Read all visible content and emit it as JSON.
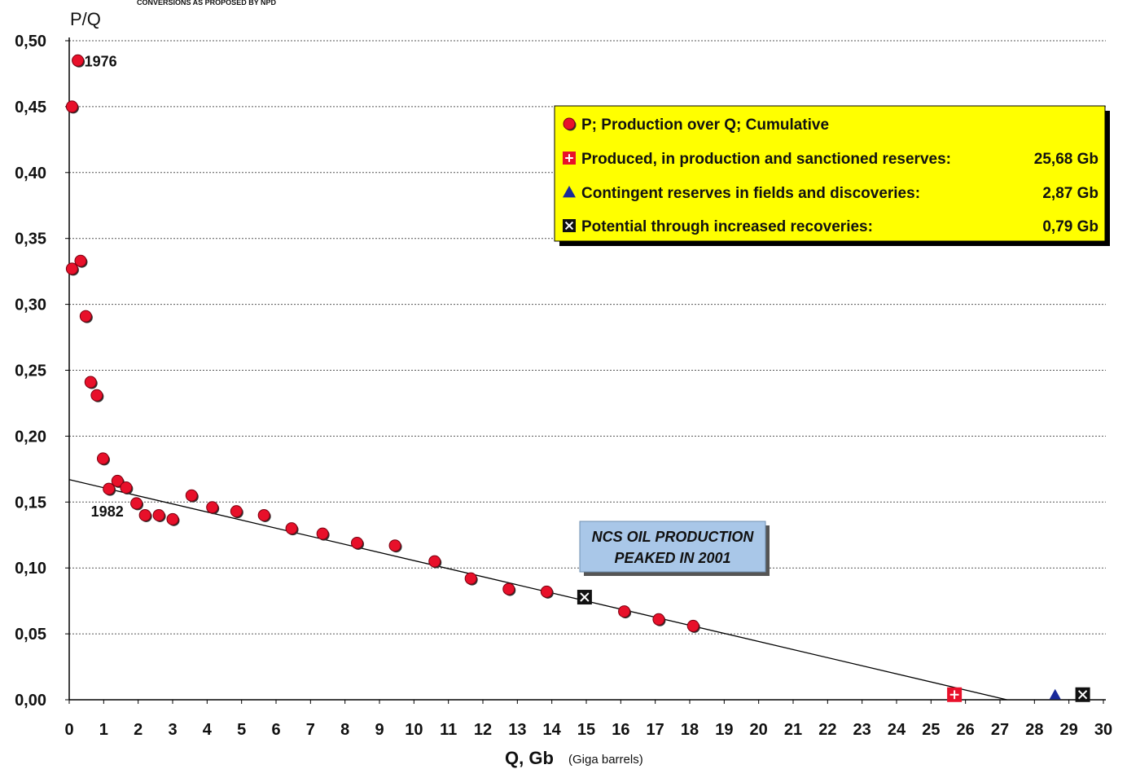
{
  "chart_data": {
    "type": "scatter",
    "header_note": "CONVERSIONS AS PROPOSED BY NPD",
    "ylabel": "P/Q",
    "xlabel": "Q, Gb",
    "xlabel_unit": "(Giga barrels)",
    "xlim": [
      0,
      30
    ],
    "ylim": [
      0,
      0.5
    ],
    "x_ticks": [
      "0",
      "1",
      "2",
      "3",
      "4",
      "5",
      "6",
      "7",
      "8",
      "9",
      "10",
      "11",
      "12",
      "13",
      "14",
      "15",
      "16",
      "17",
      "18",
      "19",
      "20",
      "21",
      "22",
      "23",
      "24",
      "25",
      "26",
      "27",
      "28",
      "29",
      "30"
    ],
    "y_ticks": [
      "0,00",
      "0,05",
      "0,10",
      "0,15",
      "0,20",
      "0,25",
      "0,30",
      "0,35",
      "0,40",
      "0,45",
      "0,50"
    ],
    "grid": "horizontal dotted",
    "legend_position": "top-right",
    "series": [
      {
        "name": "P; Production over Q; Cumulative",
        "marker": "circle",
        "color": "#e8102a",
        "points": [
          [
            0.08,
            0.45
          ],
          [
            0.25,
            0.485
          ],
          [
            0.08,
            0.327
          ],
          [
            0.33,
            0.333
          ],
          [
            0.48,
            0.291
          ],
          [
            0.62,
            0.241
          ],
          [
            0.8,
            0.231
          ],
          [
            0.98,
            0.183
          ],
          [
            1.15,
            0.16
          ],
          [
            1.4,
            0.166
          ],
          [
            1.65,
            0.161
          ],
          [
            1.95,
            0.149
          ],
          [
            2.2,
            0.14
          ],
          [
            2.6,
            0.14
          ],
          [
            3.0,
            0.137
          ],
          [
            3.55,
            0.155
          ],
          [
            4.15,
            0.146
          ],
          [
            4.85,
            0.143
          ],
          [
            5.65,
            0.14
          ],
          [
            6.45,
            0.13
          ],
          [
            7.35,
            0.126
          ],
          [
            8.35,
            0.119
          ],
          [
            9.45,
            0.117
          ],
          [
            10.6,
            0.105
          ],
          [
            11.65,
            0.092
          ],
          [
            12.75,
            0.084
          ],
          [
            13.85,
            0.082
          ],
          [
            16.1,
            0.067
          ],
          [
            17.1,
            0.061
          ],
          [
            18.1,
            0.056
          ]
        ]
      },
      {
        "name": "Produced, in production and sanctioned reserves:",
        "value_label": "25,68 Gb",
        "marker": "square-plus",
        "color": "#e8102a",
        "points": [
          [
            25.68,
            0.002
          ]
        ]
      },
      {
        "name": "Contingent reserves in fields and discoveries:",
        "value_label": "2,87 Gb",
        "marker": "triangle",
        "color": "#1a2a9a",
        "points": [
          [
            28.6,
            0.002
          ]
        ]
      },
      {
        "name": "Potential through increased recoveries:",
        "value_label": "0,79 Gb",
        "marker": "square-x",
        "color": "#111111",
        "points": [
          [
            29.4,
            0.002
          ],
          [
            14.95,
            0.076
          ]
        ]
      }
    ],
    "trend_line": {
      "points": [
        [
          0,
          0.167
        ],
        [
          27.2,
          0
        ]
      ],
      "color": "#000000"
    },
    "annotations": [
      {
        "text": "1976",
        "x": 0.25,
        "y": 0.485
      },
      {
        "text": "1982",
        "x": 1.15,
        "y": 0.16
      }
    ],
    "callout": {
      "lines": [
        "NCS OIL PRODUCTION",
        "PEAKED  IN 2001"
      ],
      "background": "#a9c7e8"
    },
    "legend_background": "#ffff00"
  }
}
